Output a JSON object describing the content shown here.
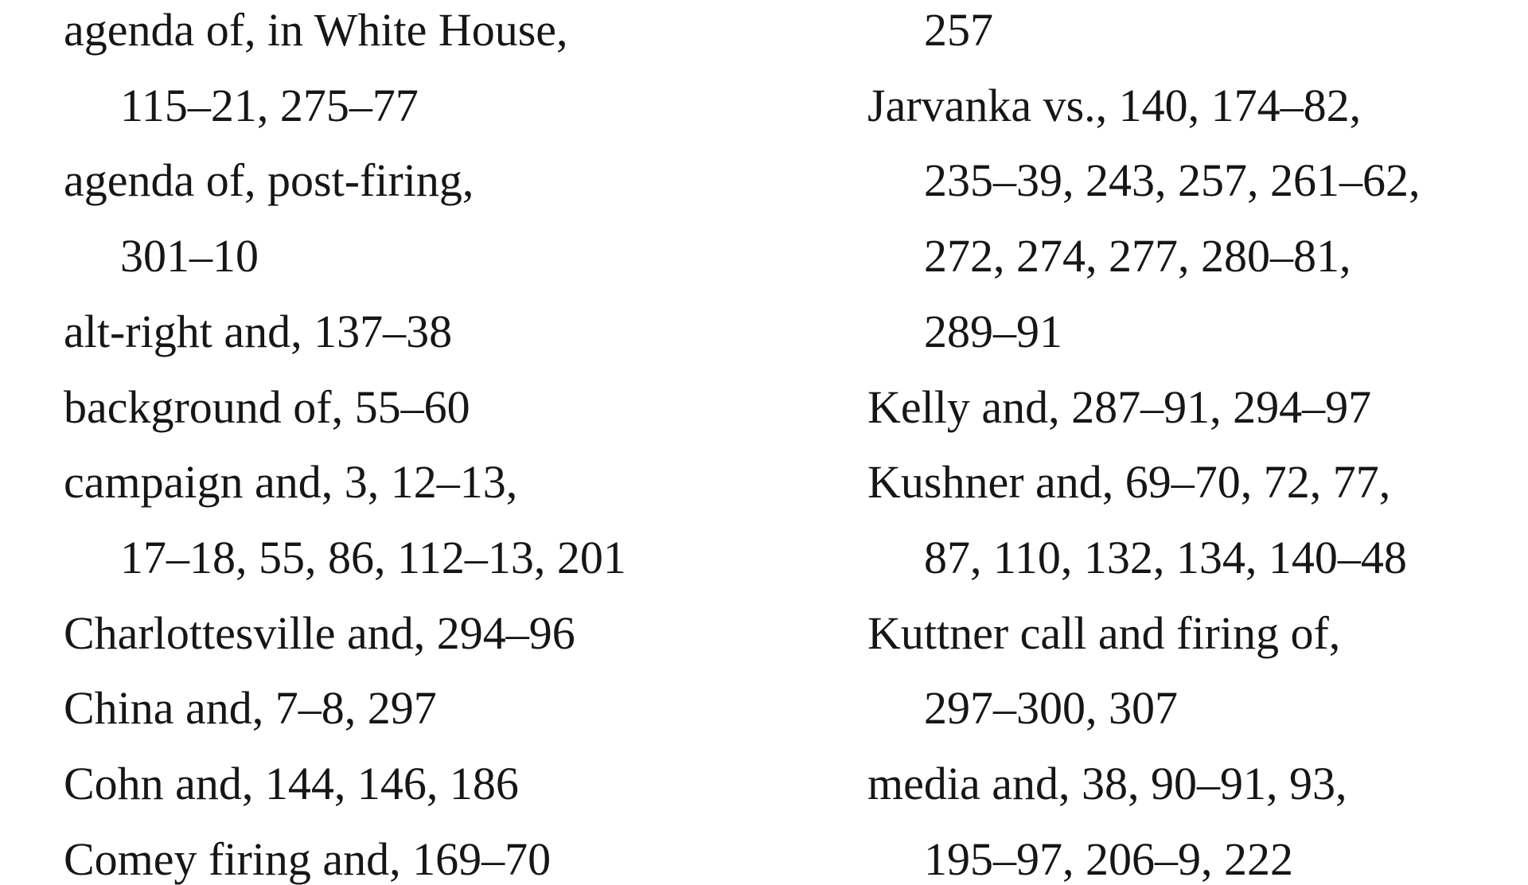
{
  "index": {
    "columns": [
      {
        "lines": [
          {
            "text": "agenda of, in White House,",
            "indent": false
          },
          {
            "text": "115–21, 275–77",
            "indent": true
          },
          {
            "text": "agenda of, post-firing,",
            "indent": false
          },
          {
            "text": "301–10",
            "indent": true
          },
          {
            "text": "alt-right and, 137–38",
            "indent": false
          },
          {
            "text": "background of, 55–60",
            "indent": false
          },
          {
            "text": "campaign and, 3, 12–13,",
            "indent": false
          },
          {
            "text": "17–18, 55, 86, 112–13, 201",
            "indent": true
          },
          {
            "text": "Charlottesville and, 294–96",
            "indent": false
          },
          {
            "text": "China and, 7–8, 297",
            "indent": false
          },
          {
            "text": "Cohn and, 144, 146, 186",
            "indent": false
          },
          {
            "text": "Comey firing and, 169–70",
            "indent": false
          }
        ]
      },
      {
        "lines": [
          {
            "text": "257",
            "indent": true
          },
          {
            "text": "Jarvanka vs., 140, 174–82,",
            "indent": false
          },
          {
            "text": "235–39, 243, 257, 261–62,",
            "indent": true
          },
          {
            "text": "272, 274, 277, 280–81,",
            "indent": true
          },
          {
            "text": "289–91",
            "indent": true
          },
          {
            "text": "Kelly and, 287–91, 294–97",
            "indent": false
          },
          {
            "text": "Kushner and, 69–70, 72, 77,",
            "indent": false
          },
          {
            "text": "87, 110, 132, 134, 140–48",
            "indent": true
          },
          {
            "text": "Kuttner call and firing of,",
            "indent": false
          },
          {
            "text": "297–300, 307",
            "indent": true
          },
          {
            "text": "media and, 38, 90–91, 93,",
            "indent": false
          },
          {
            "text": "195–97, 206–9, 222",
            "indent": true
          }
        ]
      }
    ]
  }
}
